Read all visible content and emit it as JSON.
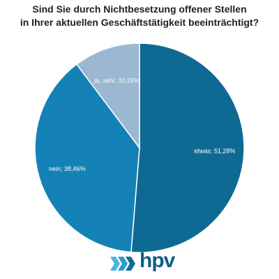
{
  "chart_data": {
    "type": "pie",
    "title_lines": [
      "Sind Sie durch Nichtbesetzung offener Stellen",
      "in Ihrer aktuellen Geschäftstätigkeit beeinträchtigt?"
    ],
    "slices": [
      {
        "label": "etwas; 51,28%",
        "value": 51.28,
        "color": "#0f6a93"
      },
      {
        "label": "nein; 38,46%",
        "value": 38.46,
        "color": "#1482b6"
      },
      {
        "label": "ja, sehr; 10,26%",
        "value": 10.26,
        "color": "#9cb7d1"
      }
    ],
    "start": "12 o'clock",
    "direction": "clockwise"
  },
  "logo": {
    "text": "hpv",
    "chevron_colors": [
      "#4ab7de",
      "#2b9ccc",
      "#0d6f98"
    ],
    "text_color": "#0d5f86"
  }
}
